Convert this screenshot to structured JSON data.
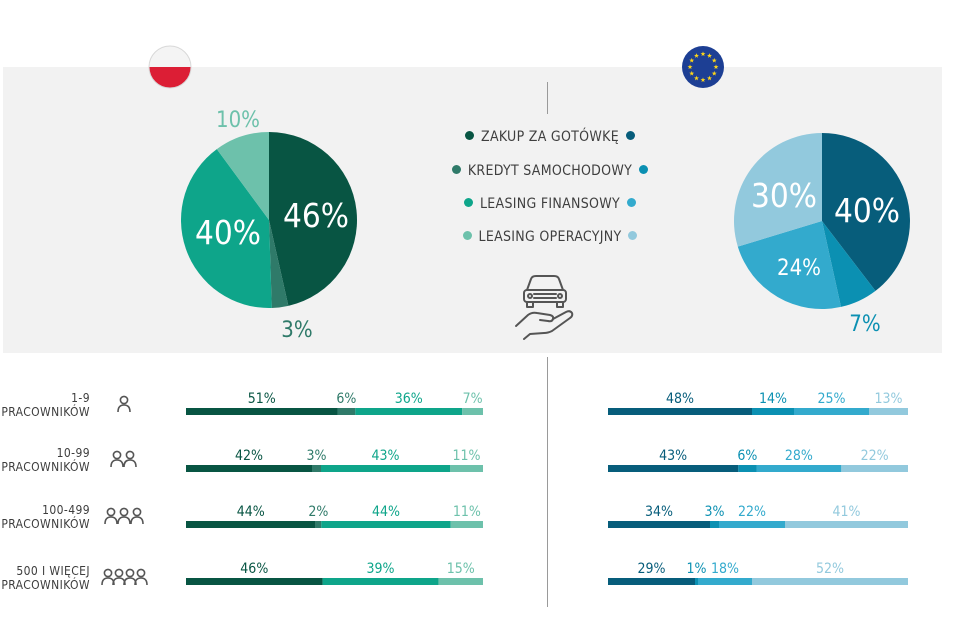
{
  "colors": {
    "pl": [
      "#085543",
      "#2f7a69",
      "#0ea58a",
      "#6dc1ab"
    ],
    "eu": [
      "#075d7b",
      "#0b90b2",
      "#33aacd",
      "#92c9dd"
    ]
  },
  "flags": {
    "left": "poland-flag",
    "right": "eu-flag"
  },
  "center_icon": "car-on-hand-icon",
  "legend": [
    {
      "label": "ZAKUP ZA GOTÓWKĘ"
    },
    {
      "label": "KREDYT SAMOCHODOWY"
    },
    {
      "label": "LEASING FINANSOWY"
    },
    {
      "label": "LEASING OPERACYJNY"
    }
  ],
  "chart_data": [
    {
      "type": "pie",
      "categories": [
        "ZAKUP ZA GOTÓWKĘ",
        "KREDYT SAMOCHODOWY",
        "LEASING FINANSOWY",
        "LEASING OPERACYJNY"
      ],
      "values": [
        46,
        3,
        40,
        10
      ],
      "labels": [
        "46%",
        "3%",
        "40%",
        "10%"
      ]
    },
    {
      "type": "pie",
      "categories": [
        "ZAKUP ZA GOTÓWKĘ",
        "KREDYT SAMOCHODOWY",
        "LEASING FINANSOWY",
        "LEASING OPERACYJNY"
      ],
      "values": [
        40,
        7,
        24,
        30
      ],
      "labels": [
        "40%",
        "7%",
        "24%",
        "30%"
      ]
    },
    {
      "type": "bar",
      "stacked": true,
      "categories": [
        "1-9 PRACOWNIKÓW",
        "10-99 PRACOWNIKÓW",
        "100-499 PRACOWNIKÓW",
        "500 I WIĘCEJ PRACOWNIKÓW"
      ],
      "series": [
        {
          "values": [
            51,
            42,
            44,
            46
          ],
          "labels": [
            "51%",
            "42%",
            "44%",
            "46%"
          ]
        },
        {
          "values": [
            6,
            3,
            2,
            0
          ],
          "labels": [
            "6%",
            "3%",
            "2%",
            ""
          ]
        },
        {
          "values": [
            36,
            43,
            44,
            39
          ],
          "labels": [
            "36%",
            "43%",
            "44%",
            "39%"
          ]
        },
        {
          "values": [
            7,
            11,
            11,
            15
          ],
          "labels": [
            "7%",
            "11%",
            "11%",
            "15%"
          ]
        }
      ]
    },
    {
      "type": "bar",
      "stacked": true,
      "categories": [
        "1-9 PRACOWNIKÓW",
        "10-99 PRACOWNIKÓW",
        "100-499 PRACOWNIKÓW",
        "500 I WIĘCEJ PRACOWNIKÓW"
      ],
      "series": [
        {
          "values": [
            48,
            43,
            34,
            29
          ],
          "labels": [
            "48%",
            "43%",
            "34%",
            "29%"
          ]
        },
        {
          "values": [
            14,
            6,
            3,
            1
          ],
          "labels": [
            "14%",
            "6%",
            "3%",
            "1%"
          ]
        },
        {
          "values": [
            25,
            28,
            22,
            18
          ],
          "labels": [
            "25%",
            "28%",
            "22%",
            "18%"
          ]
        },
        {
          "values": [
            13,
            22,
            41,
            52
          ],
          "labels": [
            "13%",
            "22%",
            "41%",
            "52%"
          ]
        }
      ]
    }
  ],
  "rows": [
    {
      "line1": "1-9",
      "line2": "PRACOWNIKÓW",
      "people": 1
    },
    {
      "line1": "10-99",
      "line2": "PRACOWNIKÓW",
      "people": 2
    },
    {
      "line1": "100-499",
      "line2": "PRACOWNIKÓW",
      "people": 3
    },
    {
      "line1": "500 I WIĘCEJ",
      "line2": "PRACOWNIKÓW",
      "people": 4
    }
  ]
}
